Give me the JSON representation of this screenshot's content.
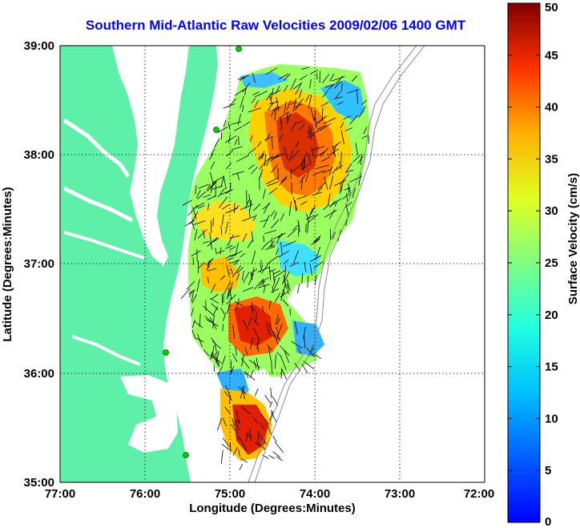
{
  "title": "Southern Mid-Atlantic Raw Velocities 2009/02/06 1400 GMT",
  "x_axis": {
    "label": "Longitude (Degrees:Minutes)",
    "ticks": [
      "77:00",
      "76:00",
      "75:00",
      "74:00",
      "73:00",
      "72:00"
    ]
  },
  "y_axis": {
    "label": "Latitude (Degrees:Minutes)",
    "ticks": [
      "39:00",
      "38:00",
      "37:00",
      "36:00",
      "35:00"
    ]
  },
  "colorbar": {
    "label": "Surface Velocity (cm/s)",
    "ticks": [
      "50",
      "45",
      "40",
      "35",
      "30",
      "25",
      "20",
      "15",
      "10",
      "5",
      "0"
    ],
    "min": 0,
    "max": 50
  },
  "colors": {
    "land": "#5ef0a8",
    "title": "#0000ff",
    "grid": "#000000"
  }
}
